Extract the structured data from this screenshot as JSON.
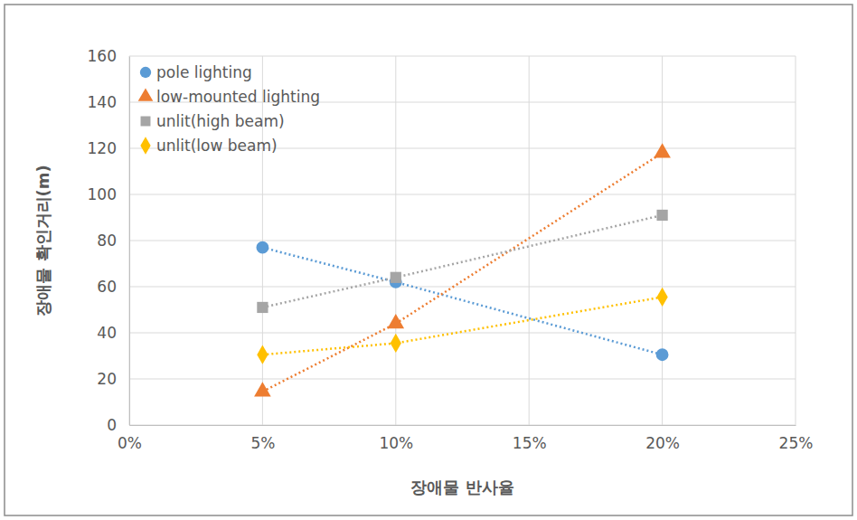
{
  "chart_data": {
    "type": "line",
    "x_label": "장애물 반사율",
    "y_label": "장애물 확인거리(m)",
    "x": [
      5,
      10,
      20
    ],
    "xlim": [
      0,
      25
    ],
    "xticks": [
      {
        "value": 0,
        "label": "0%"
      },
      {
        "value": 5,
        "label": "5%"
      },
      {
        "value": 10,
        "label": "10%"
      },
      {
        "value": 15,
        "label": "15%"
      },
      {
        "value": 20,
        "label": "20%"
      },
      {
        "value": 25,
        "label": "25%"
      }
    ],
    "ylim": [
      0,
      160
    ],
    "yticks": [
      0,
      20,
      40,
      60,
      80,
      100,
      120,
      140,
      160
    ],
    "grid": true,
    "legend": "top-left",
    "series": [
      {
        "name": "pole lighting",
        "color": "#5b9bd5",
        "marker": "circle",
        "line_style": "dotted",
        "values": [
          77,
          62,
          30.5
        ]
      },
      {
        "name": "low-mounted lighting",
        "color": "#ed7d31",
        "marker": "triangle",
        "line_style": "dotted",
        "values": [
          14.5,
          44,
          118
        ]
      },
      {
        "name": "unlit(high beam)",
        "color": "#a5a5a5",
        "marker": "square",
        "line_style": "dotted",
        "values": [
          51,
          64,
          91
        ]
      },
      {
        "name": "unlit(low beam)",
        "color": "#ffc000",
        "marker": "diamond",
        "line_style": "dotted",
        "values": [
          30.5,
          35.5,
          55.5
        ]
      }
    ]
  }
}
